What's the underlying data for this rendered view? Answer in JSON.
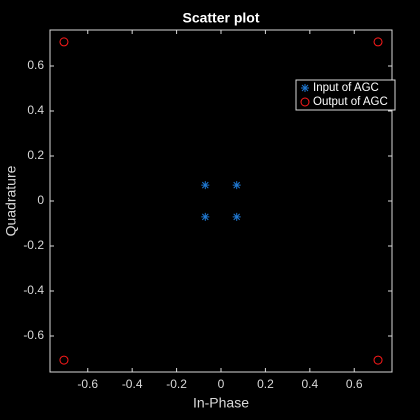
{
  "chart_data": {
    "type": "scatter",
    "title": "Scatter plot",
    "x_label": "In-Phase",
    "y_label": "Quadrature",
    "xlim": [
      -0.77,
      0.77
    ],
    "ylim": [
      -0.76,
      0.76
    ],
    "xticks": [
      -0.6,
      -0.4,
      -0.2,
      0,
      0.2,
      0.4,
      0.6
    ],
    "yticks": [
      -0.6,
      -0.4,
      -0.2,
      0,
      0.2,
      0.4,
      0.6
    ],
    "legend": "upper right",
    "series": [
      {
        "name": "Input of AGC",
        "color": "#1f77d0",
        "marker": "star",
        "x": [
          -0.0707,
          0.0707,
          -0.0707,
          0.0707
        ],
        "y": [
          0.0707,
          0.0707,
          -0.0707,
          -0.0707
        ]
      },
      {
        "name": "Output of AGC",
        "color": "#ff1a1a",
        "marker": "circle",
        "x": [
          -0.7071,
          0.7071,
          -0.7071,
          0.7071
        ],
        "y": [
          0.7071,
          0.7071,
          -0.7071,
          -0.7071
        ]
      }
    ]
  }
}
